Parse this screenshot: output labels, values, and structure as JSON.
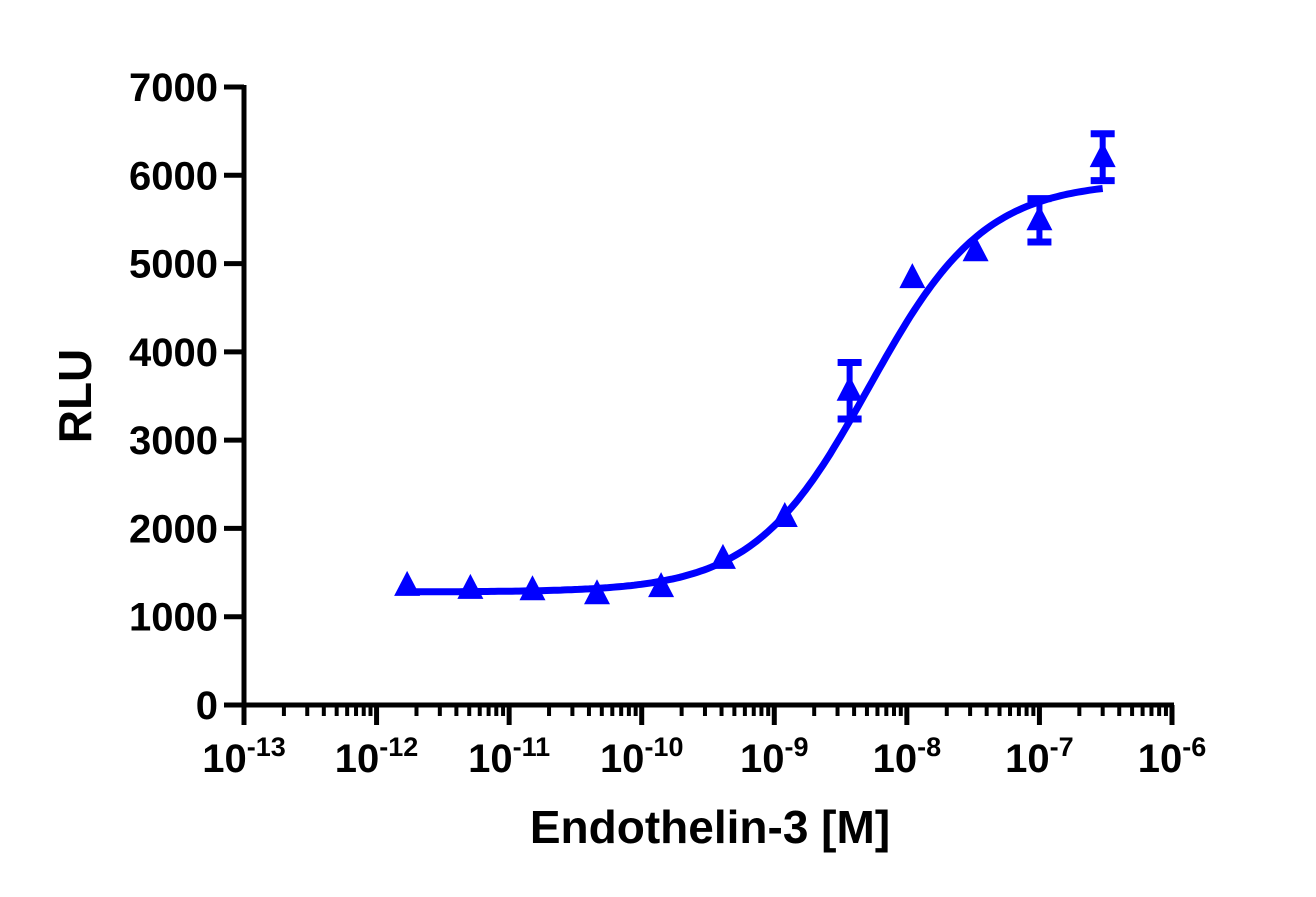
{
  "chart_data": {
    "type": "scatter",
    "xlabel": "Endothelin-3 [M]",
    "ylabel": "RLU",
    "xscale": "log",
    "xlim": [
      1e-13,
      1e-06
    ],
    "ylim": [
      0,
      7000
    ],
    "x_ticks": [
      {
        "base": "10",
        "exp": "-13"
      },
      {
        "base": "10",
        "exp": "-12"
      },
      {
        "base": "10",
        "exp": "-11"
      },
      {
        "base": "10",
        "exp": "-10"
      },
      {
        "base": "10",
        "exp": "-9"
      },
      {
        "base": "10",
        "exp": "-8"
      },
      {
        "base": "10",
        "exp": "-7"
      },
      {
        "base": "10",
        "exp": "-6"
      }
    ],
    "y_ticks": [
      "0",
      "1000",
      "2000",
      "3000",
      "4000",
      "5000",
      "6000",
      "7000"
    ],
    "grid": false,
    "color": "#0000ff",
    "marker": "triangle",
    "points": [
      {
        "x": 1.7e-12,
        "y": 1350,
        "err": 0
      },
      {
        "x": 5.1e-12,
        "y": 1315,
        "err": 0
      },
      {
        "x": 1.5e-11,
        "y": 1300,
        "err": 0
      },
      {
        "x": 4.6e-11,
        "y": 1255,
        "err": 0
      },
      {
        "x": 1.4e-10,
        "y": 1335,
        "err": 0
      },
      {
        "x": 4.1e-10,
        "y": 1655,
        "err": 0
      },
      {
        "x": 1.2e-09,
        "y": 2130,
        "err": 0
      },
      {
        "x": 3.7e-09,
        "y": 3560,
        "err": 320
      },
      {
        "x": 1.1e-08,
        "y": 4835,
        "err": 0
      },
      {
        "x": 3.3e-08,
        "y": 5140,
        "err": 0
      },
      {
        "x": 1e-07,
        "y": 5490,
        "err": 245
      },
      {
        "x": 3e-07,
        "y": 6205,
        "err": 265
      }
    ],
    "fit": {
      "model": "sigmoidal dose-response",
      "bottom": 1280,
      "top": 5930,
      "ec50": 5.2e-09,
      "hill": 1.0,
      "x_range": [
        1.6e-12,
        3e-07
      ]
    }
  }
}
